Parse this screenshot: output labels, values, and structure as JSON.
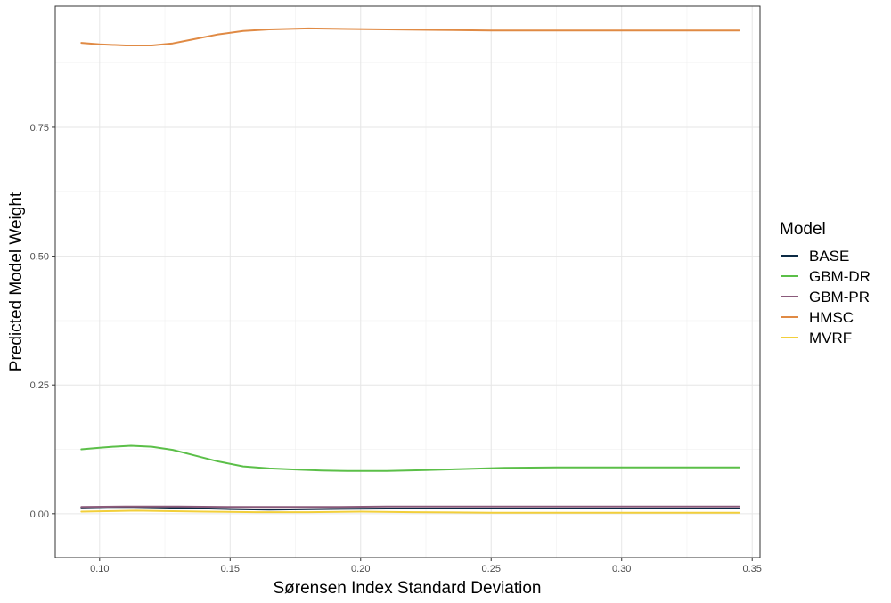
{
  "chart_data": {
    "type": "line",
    "title": "",
    "xlabel": "Sørensen Index Standard Deviation",
    "ylabel": "Predicted Model Weight",
    "xlim": [
      0.083,
      0.353
    ],
    "ylim": [
      -0.085,
      0.985
    ],
    "x_ticks": [
      0.1,
      0.15,
      0.2,
      0.25,
      0.3,
      0.35
    ],
    "x_tick_labels": [
      "0.10",
      "0.15",
      "0.20",
      "0.25",
      "0.30",
      "0.35"
    ],
    "y_ticks": [
      0.0,
      0.25,
      0.5,
      0.75
    ],
    "y_tick_labels": [
      "0.00",
      "0.25",
      "0.50",
      "0.75"
    ],
    "grid": true,
    "legend": {
      "title": "Model",
      "position": "right"
    },
    "series": [
      {
        "name": "BASE",
        "color": "#0b2a44",
        "x": [
          0.093,
          0.103,
          0.113,
          0.125,
          0.135,
          0.15,
          0.165,
          0.185,
          0.21,
          0.235,
          0.26,
          0.29,
          0.32,
          0.345
        ],
        "y": [
          0.012,
          0.013,
          0.013,
          0.012,
          0.011,
          0.009,
          0.008,
          0.009,
          0.01,
          0.01,
          0.01,
          0.01,
          0.01,
          0.01
        ]
      },
      {
        "name": "GBM-DR",
        "color": "#5bbf48",
        "x": [
          0.093,
          0.1,
          0.105,
          0.112,
          0.12,
          0.128,
          0.135,
          0.145,
          0.155,
          0.165,
          0.175,
          0.185,
          0.195,
          0.21,
          0.225,
          0.24,
          0.255,
          0.275,
          0.3,
          0.325,
          0.345
        ],
        "y": [
          0.125,
          0.128,
          0.13,
          0.132,
          0.13,
          0.124,
          0.115,
          0.102,
          0.092,
          0.088,
          0.086,
          0.084,
          0.083,
          0.083,
          0.085,
          0.087,
          0.089,
          0.09,
          0.09,
          0.09,
          0.09
        ]
      },
      {
        "name": "GBM-PR",
        "color": "#8a5a7a",
        "x": [
          0.093,
          0.11,
          0.13,
          0.15,
          0.17,
          0.19,
          0.21,
          0.23,
          0.26,
          0.3,
          0.345
        ],
        "y": [
          0.013,
          0.014,
          0.014,
          0.013,
          0.013,
          0.013,
          0.014,
          0.014,
          0.014,
          0.014,
          0.014
        ]
      },
      {
        "name": "HMSC",
        "color": "#e08a44",
        "x": [
          0.093,
          0.1,
          0.11,
          0.12,
          0.128,
          0.135,
          0.145,
          0.155,
          0.165,
          0.18,
          0.195,
          0.21,
          0.23,
          0.25,
          0.275,
          0.3,
          0.325,
          0.345
        ],
        "y": [
          0.914,
          0.911,
          0.909,
          0.909,
          0.913,
          0.92,
          0.93,
          0.937,
          0.94,
          0.942,
          0.941,
          0.94,
          0.939,
          0.938,
          0.938,
          0.938,
          0.938,
          0.938
        ]
      },
      {
        "name": "MVRF",
        "color": "#f2cf3b",
        "x": [
          0.093,
          0.105,
          0.114,
          0.125,
          0.14,
          0.16,
          0.18,
          0.2,
          0.22,
          0.25,
          0.3,
          0.345
        ],
        "y": [
          0.004,
          0.005,
          0.006,
          0.005,
          0.004,
          0.003,
          0.003,
          0.004,
          0.003,
          0.002,
          0.002,
          0.002
        ]
      }
    ]
  }
}
